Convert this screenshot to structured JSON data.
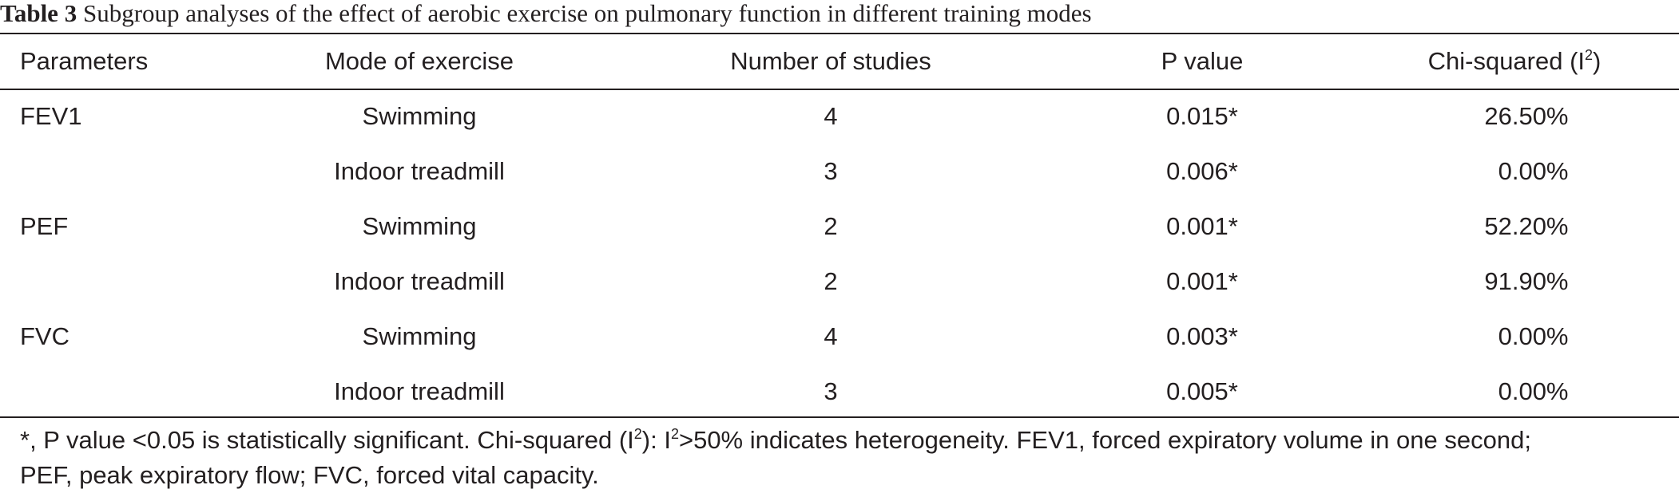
{
  "caption": {
    "label": "Table 3",
    "text": "Subgroup analyses of the effect of aerobic exercise on pulmonary function in different training modes"
  },
  "table": {
    "headers": {
      "parameters": "Parameters",
      "mode": "Mode of exercise",
      "studies": "Number of studies",
      "p_value": "P value",
      "chi_prefix": "Chi-squared (I",
      "chi_sup": "2",
      "chi_suffix": ")"
    },
    "rows": [
      {
        "parameter": "FEV1",
        "mode": "Swimming",
        "studies": "4",
        "p_value": "0.015*",
        "chi": "26.50%"
      },
      {
        "parameter": "",
        "mode": "Indoor treadmill",
        "studies": "3",
        "p_value": "0.006*",
        "chi": "0.00%"
      },
      {
        "parameter": "PEF",
        "mode": "Swimming",
        "studies": "2",
        "p_value": "0.001*",
        "chi": "52.20%"
      },
      {
        "parameter": "",
        "mode": "Indoor treadmill",
        "studies": "2",
        "p_value": "0.001*",
        "chi": "91.90%"
      },
      {
        "parameter": "FVC",
        "mode": "Swimming",
        "studies": "4",
        "p_value": "0.003*",
        "chi": "0.00%"
      },
      {
        "parameter": "",
        "mode": "Indoor treadmill",
        "studies": "3",
        "p_value": "0.005*",
        "chi": "0.00%"
      }
    ]
  },
  "footnote": {
    "part1": "*, P value <0.05 is statistically significant. Chi-squared (I",
    "sup1": "2",
    "part2": "): I",
    "sup2": "2",
    "part3": ">50% indicates heterogeneity. FEV1, forced expiratory volume in one second;",
    "line2": "PEF, peak expiratory flow; FVC, forced vital capacity."
  }
}
